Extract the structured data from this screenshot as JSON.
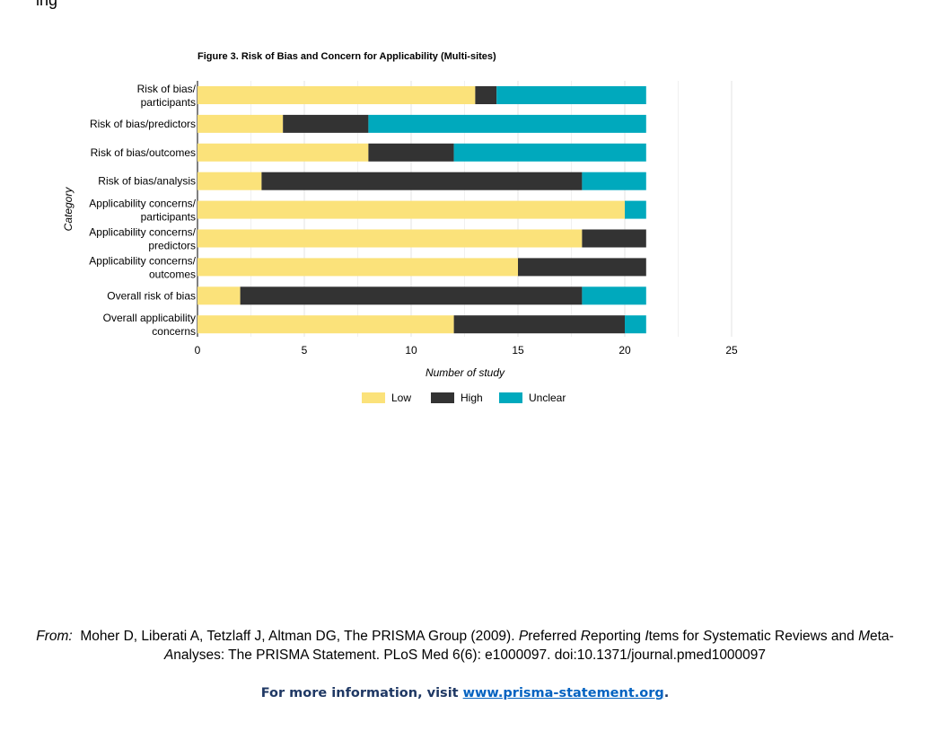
{
  "top_text": "ing",
  "chart_data": {
    "type": "bar",
    "orientation": "horizontal",
    "stacked": true,
    "title": "Figure 3. Risk of Bias and Concern for Applicability (Multi-sites)",
    "xlabel": "Number of study",
    "ylabel": "Category",
    "xlim": [
      0,
      25
    ],
    "xticks": [
      0,
      5,
      10,
      15,
      20,
      25
    ],
    "grid": true,
    "legend_position": "bottom",
    "categories": [
      [
        "Risk of bias/",
        "participants"
      ],
      [
        "Risk of bias/predictors"
      ],
      [
        "Risk of bias/outcomes"
      ],
      [
        "Risk of bias/analysis"
      ],
      [
        "Applicability concerns/",
        "participants"
      ],
      [
        "Applicability concerns/",
        "predictors"
      ],
      [
        "Applicability concerns/",
        "outcomes"
      ],
      [
        "Overall risk of bias"
      ],
      [
        "Overall applicability",
        "concerns"
      ]
    ],
    "series": [
      {
        "name": "Low",
        "color": "#fbe27a",
        "values": [
          13,
          4,
          8,
          3,
          20,
          18,
          15,
          2,
          12
        ]
      },
      {
        "name": "High",
        "color": "#333333",
        "values": [
          1,
          4,
          4,
          15,
          0,
          3,
          6,
          16,
          8
        ]
      },
      {
        "name": "Unclear",
        "color": "#00a9bd",
        "values": [
          7,
          13,
          9,
          3,
          1,
          0,
          0,
          3,
          1
        ]
      }
    ]
  },
  "citation": {
    "from_label": "From:",
    "part1": "Moher D, Liberati A, Tetzlaff J, Altman DG, The PRISMA Group (2009). ",
    "p": "P",
    "part2": "referred ",
    "r": "R",
    "part3": "eporting ",
    "i": "I",
    "part4": "tems for ",
    "s": "S",
    "part5": "ystematic Reviews and ",
    "m": "M",
    "part6": "eta-",
    "a": "A",
    "part7": "nalyses: The PRISMA Statement. PLoS Med 6(6): e1000097. doi:10.1371/journal.pmed1000097"
  },
  "more_info": {
    "prefix": "For more information, visit ",
    "link": "www.prisma-statement.org",
    "suffix": "."
  }
}
